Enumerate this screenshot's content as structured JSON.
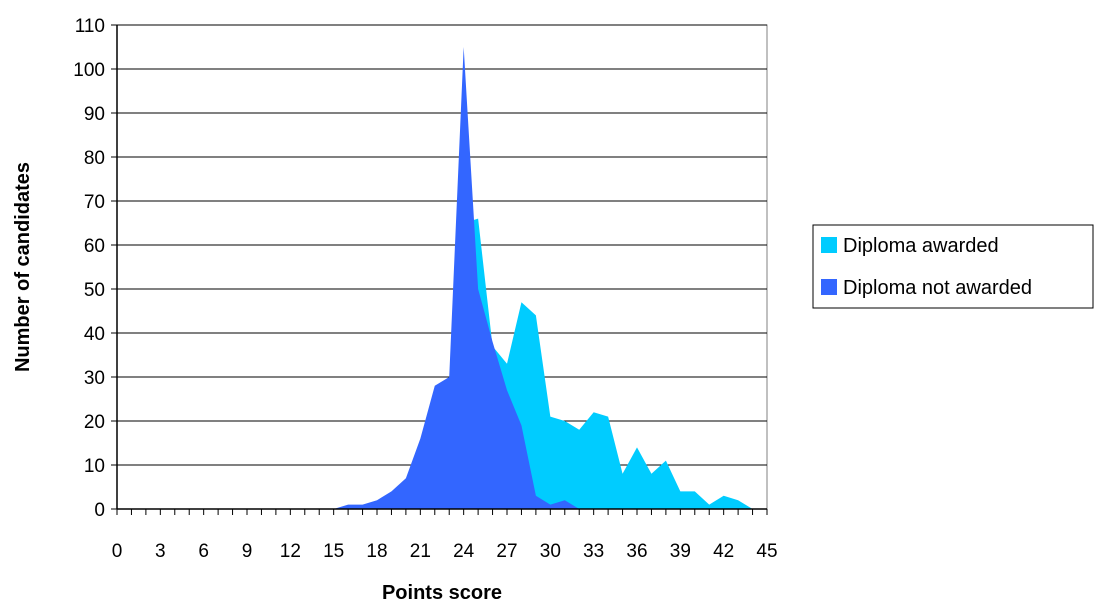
{
  "chart_data": {
    "type": "area",
    "xlabel": "Points score",
    "ylabel": "Number of candidates",
    "xlim": [
      0,
      45
    ],
    "ylim": [
      0,
      110
    ],
    "x_ticks": [
      0,
      3,
      6,
      9,
      12,
      15,
      18,
      21,
      24,
      27,
      30,
      33,
      36,
      39,
      42,
      45
    ],
    "y_ticks": [
      0,
      10,
      20,
      30,
      40,
      50,
      60,
      70,
      80,
      90,
      100,
      110
    ],
    "grid": "horizontal",
    "legend_position": "right",
    "x": [
      0,
      1,
      2,
      3,
      4,
      5,
      6,
      7,
      8,
      9,
      10,
      11,
      12,
      13,
      14,
      15,
      16,
      17,
      18,
      19,
      20,
      21,
      22,
      23,
      24,
      25,
      26,
      27,
      28,
      29,
      30,
      31,
      32,
      33,
      34,
      35,
      36,
      37,
      38,
      39,
      40,
      41,
      42,
      43,
      44,
      45
    ],
    "series": [
      {
        "name": "Diploma awarded",
        "color": "#00CCFF",
        "values": [
          0,
          0,
          0,
          0,
          0,
          0,
          0,
          0,
          0,
          0,
          0,
          0,
          0,
          0,
          0,
          0,
          0,
          0,
          0,
          0,
          0,
          0,
          0,
          0,
          65,
          66,
          37,
          33,
          47,
          44,
          21,
          20,
          18,
          22,
          21,
          8,
          14,
          8,
          11,
          4,
          4,
          1,
          3,
          2,
          0,
          0
        ]
      },
      {
        "name": "Diploma not awarded",
        "color": "#3366FF",
        "values": [
          0,
          0,
          0,
          0,
          0,
          0,
          0,
          0,
          0,
          0,
          0,
          0,
          0,
          0,
          0,
          0,
          1,
          1,
          2,
          4,
          7,
          16,
          28,
          30,
          105,
          50,
          38,
          27,
          19,
          3,
          1,
          2,
          0,
          0,
          0,
          0,
          0,
          0,
          0,
          0,
          0,
          0,
          0,
          0,
          0,
          0
        ]
      }
    ]
  }
}
